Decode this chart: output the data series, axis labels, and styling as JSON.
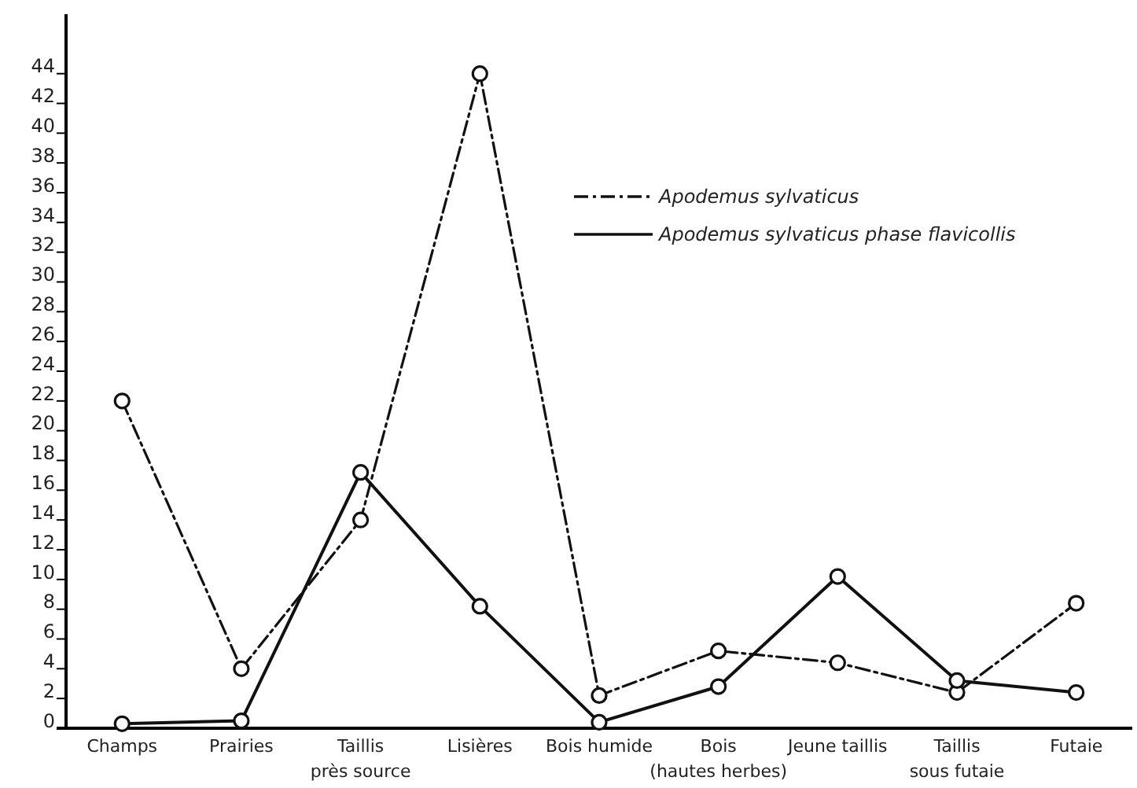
{
  "chart_data": {
    "type": "line",
    "categories": [
      "Champs",
      "Prairies",
      "Taillis\nprès source",
      "Lisières",
      "Bois humide",
      "Bois\n(hautes herbes)",
      "Jeune taillis",
      "Taillis\nsous futaie",
      "Futaie"
    ],
    "series": [
      {
        "name": "Apodemus sylvaticus",
        "color": "#111111",
        "line_style": "dashed",
        "values": [
          22,
          4,
          14,
          44,
          2.2,
          5.2,
          4.4,
          2.4,
          8.4
        ]
      },
      {
        "name": "Apodemus sylvaticus phase flavicollis",
        "color": "#111111",
        "line_style": "solid",
        "values": [
          0.3,
          0.5,
          17.2,
          8.2,
          0.4,
          2.8,
          10.2,
          3.2,
          2.4
        ]
      }
    ],
    "ylim": [
      0,
      48
    ],
    "yticks": [
      0,
      2,
      4,
      6,
      8,
      10,
      12,
      14,
      16,
      18,
      20,
      22,
      24,
      26,
      28,
      30,
      32,
      34,
      36,
      38,
      40,
      42,
      44
    ],
    "marker": "circle",
    "grid": false,
    "legend": "top right"
  }
}
